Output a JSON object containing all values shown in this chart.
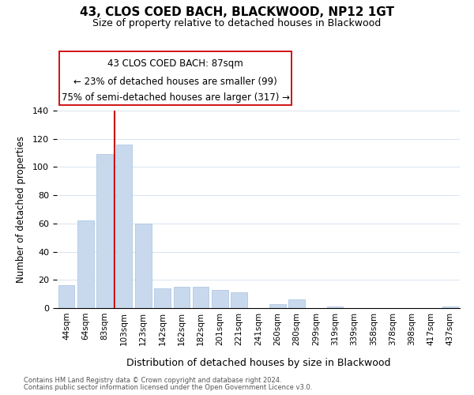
{
  "title": "43, CLOS COED BACH, BLACKWOOD, NP12 1GT",
  "subtitle": "Size of property relative to detached houses in Blackwood",
  "xlabel": "Distribution of detached houses by size in Blackwood",
  "ylabel": "Number of detached properties",
  "bar_labels": [
    "44sqm",
    "64sqm",
    "83sqm",
    "103sqm",
    "123sqm",
    "142sqm",
    "162sqm",
    "182sqm",
    "201sqm",
    "221sqm",
    "241sqm",
    "260sqm",
    "280sqm",
    "299sqm",
    "319sqm",
    "339sqm",
    "358sqm",
    "378sqm",
    "398sqm",
    "417sqm",
    "437sqm"
  ],
  "bar_values": [
    16,
    62,
    109,
    116,
    60,
    14,
    15,
    15,
    13,
    11,
    0,
    3,
    6,
    0,
    1,
    0,
    0,
    0,
    0,
    0,
    1
  ],
  "bar_color": "#c8d9ee",
  "bar_edge_color": "#a8c0de",
  "ylim": [
    0,
    140
  ],
  "yticks": [
    0,
    20,
    40,
    60,
    80,
    100,
    120,
    140
  ],
  "property_line_label": "43 CLOS COED BACH: 87sqm",
  "annotation_line1": "← 23% of detached houses are smaller (99)",
  "annotation_line2": "75% of semi-detached houses are larger (317) →",
  "footer1": "Contains HM Land Registry data © Crown copyright and database right 2024.",
  "footer2": "Contains public sector information licensed under the Open Government Licence v3.0.",
  "grid_color": "#d8e4f0",
  "vline_color": "#cc0000",
  "background_color": "#ffffff"
}
